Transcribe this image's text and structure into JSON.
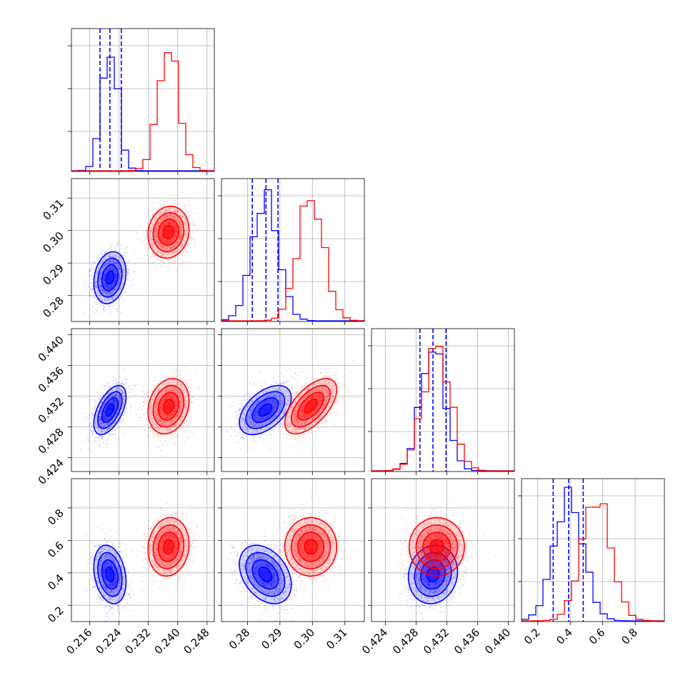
{
  "chart_data": {
    "type": "corner",
    "params": [
      "p1",
      "p2",
      "p3",
      "p4"
    ],
    "param_labels": [
      "",
      "",
      "",
      ""
    ],
    "ranges": {
      "p1": [
        0.211,
        0.25
      ],
      "p2": [
        0.272,
        0.316
      ],
      "p3": [
        0.4222,
        0.4408
      ],
      "p4": [
        0.1,
        0.98
      ]
    },
    "ticks": {
      "p1": [
        0.216,
        0.224,
        0.232,
        0.24,
        0.248
      ],
      "p2": [
        0.28,
        0.29,
        0.3,
        0.31
      ],
      "p3": [
        0.424,
        0.428,
        0.432,
        0.436,
        0.44
      ],
      "p4": [
        0.2,
        0.4,
        0.6,
        0.8
      ]
    },
    "tick_labels": {
      "p1": [
        "0.216",
        "0.224",
        "0.232",
        "0.240",
        "0.248"
      ],
      "p2": [
        "0.28",
        "0.29",
        "0.30",
        "0.31"
      ],
      "p3": [
        "0.424",
        "0.428",
        "0.432",
        "0.436",
        "0.440"
      ],
      "p4": [
        "0.2",
        "0.4",
        "0.6",
        "0.8"
      ]
    },
    "grid": true,
    "series": [
      {
        "color": "#0000ff",
        "mean": {
          "p1": 0.2215,
          "p2": 0.2855,
          "p3": 0.4302,
          "p4": 0.39
        },
        "sd": {
          "p1": 0.0022,
          "p2": 0.004,
          "p3": 0.0016,
          "p4": 0.09
        },
        "corr": {
          "p1-p2": 0.2,
          "p1-p3": 0.55,
          "p1-p4": -0.25,
          "p2-p3": 0.5,
          "p2-p4": -0.35,
          "p3-p4": 0.1
        },
        "quantiles": {
          "p1": [
            0.2188,
            0.2215,
            0.2246
          ],
          "p2": [
            0.2815,
            0.2857,
            0.2894
          ],
          "p3": [
            0.4285,
            0.4302,
            0.4319
          ],
          "p4": [
            0.295,
            0.39,
            0.48
          ]
        }
      },
      {
        "color": "#ff0000",
        "mean": {
          "p1": 0.2375,
          "p2": 0.2995,
          "p3": 0.4307,
          "p4": 0.56
        },
        "sd": {
          "p1": 0.0028,
          "p2": 0.004,
          "p3": 0.0018,
          "p4": 0.09
        },
        "corr": {
          "p1-p2": 0.1,
          "p1-p3": 0.2,
          "p1-p4": 0.1,
          "p2-p3": 0.6,
          "p2-p4": 0.0,
          "p3-p4": 0.0
        },
        "quantiles": null
      }
    ],
    "contour_levels_sigma": [
      0.5,
      1.0,
      1.5,
      2.0
    ]
  }
}
